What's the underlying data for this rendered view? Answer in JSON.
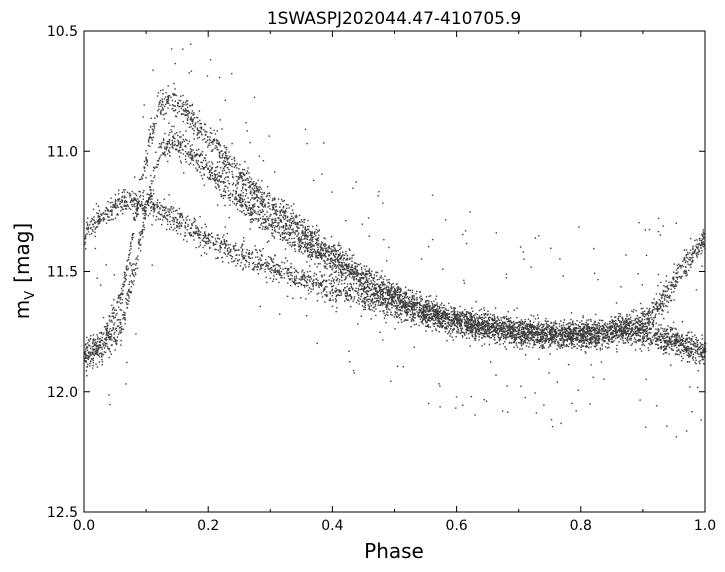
{
  "chart_data": {
    "type": "scatter",
    "title": "1SWASPJ202044.47-410705.9",
    "xlabel": "Phase",
    "ylabel_main": "m",
    "ylabel_sub": "V",
    "ylabel_unit": "[mag]",
    "xlim": [
      0.0,
      1.0
    ],
    "ylim": [
      10.5,
      12.5
    ],
    "y_inverted": true,
    "grid": false,
    "legend": "none",
    "x_ticks": [
      "0.0",
      "0.2",
      "0.4",
      "0.6",
      "0.8",
      "1.0"
    ],
    "y_ticks": [
      "10.5",
      "11.0",
      "11.5",
      "12.0",
      "12.5"
    ],
    "point_color": "#3c3c3c",
    "branches": [
      {
        "x": [
          0.0,
          0.03,
          0.06,
          0.08,
          0.1,
          0.12,
          0.14,
          0.16,
          0.2,
          0.25,
          0.3,
          0.35,
          0.4,
          0.45,
          0.5,
          0.55,
          0.6,
          0.65,
          0.7,
          0.75,
          0.8,
          0.85,
          0.9,
          0.93,
          0.96,
          1.0
        ],
        "y": [
          11.85,
          11.78,
          11.6,
          11.3,
          11.0,
          10.82,
          10.78,
          10.82,
          10.95,
          11.1,
          11.22,
          11.32,
          11.42,
          11.52,
          11.6,
          11.66,
          11.7,
          11.73,
          11.75,
          11.76,
          11.76,
          11.75,
          11.7,
          11.62,
          11.5,
          11.35
        ]
      },
      {
        "x": [
          0.0,
          0.03,
          0.06,
          0.08,
          0.1,
          0.12,
          0.14,
          0.16,
          0.2,
          0.25,
          0.3,
          0.35,
          0.4,
          0.45,
          0.5,
          0.55,
          0.6,
          0.65,
          0.7,
          0.75,
          0.8,
          0.85,
          0.9,
          0.95,
          1.0
        ],
        "y": [
          11.85,
          11.82,
          11.72,
          11.5,
          11.22,
          11.02,
          10.95,
          10.98,
          11.08,
          11.2,
          11.3,
          11.38,
          11.46,
          11.54,
          11.6,
          11.66,
          11.7,
          11.73,
          11.75,
          11.76,
          11.76,
          11.75,
          11.74,
          11.78,
          11.83
        ]
      },
      {
        "x": [
          0.0,
          0.02,
          0.05,
          0.07,
          0.1,
          0.13,
          0.16,
          0.2,
          0.25,
          0.3,
          0.35,
          0.4,
          0.45,
          0.5,
          0.55,
          0.6,
          0.65,
          0.7,
          0.75,
          0.8,
          0.85,
          0.9,
          0.95,
          1.0
        ],
        "y": [
          11.35,
          11.28,
          11.22,
          11.2,
          11.22,
          11.25,
          11.3,
          11.37,
          11.43,
          11.48,
          11.53,
          11.57,
          11.61,
          11.65,
          11.68,
          11.71,
          11.73,
          11.75,
          11.76,
          11.76,
          11.75,
          11.76,
          11.8,
          11.84
        ]
      }
    ]
  }
}
